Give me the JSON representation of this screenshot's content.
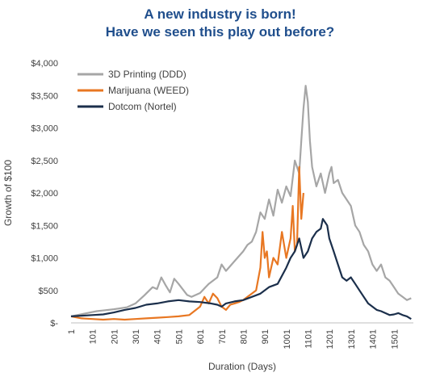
{
  "chart_data": {
    "type": "line",
    "title": "A new industry is born!",
    "subtitle": "Have we seen this play out before?",
    "xlabel": "Duration (Days)",
    "ylabel": "Growth of $100",
    "xlim": [
      1,
      1590
    ],
    "ylim": [
      0,
      4000
    ],
    "x_ticks": [
      "1",
      "101",
      "201",
      "301",
      "401",
      "501",
      "601",
      "701",
      "801",
      "901",
      "1001",
      "1101",
      "1201",
      "1301",
      "1401",
      "1501"
    ],
    "y_ticks": [
      "$-",
      "$500",
      "$1,000",
      "$1,500",
      "$2,000",
      "$2,500",
      "$3,000",
      "$3,500",
      "$4,000"
    ],
    "grid": false,
    "legend_position": "top-left",
    "series": [
      {
        "name": "3D Printing (DDD)",
        "color": "#a6a6a6",
        "x": [
          1,
          60,
          120,
          200,
          260,
          300,
          340,
          380,
          400,
          420,
          440,
          460,
          480,
          500,
          540,
          560,
          600,
          640,
          680,
          700,
          720,
          760,
          800,
          820,
          840,
          860,
          880,
          900,
          920,
          940,
          960,
          980,
          1000,
          1020,
          1040,
          1060,
          1070,
          1080,
          1090,
          1100,
          1110,
          1120,
          1140,
          1160,
          1180,
          1200,
          1210,
          1220,
          1240,
          1260,
          1280,
          1300,
          1320,
          1340,
          1360,
          1380,
          1400,
          1420,
          1440,
          1460,
          1480,
          1500,
          1520,
          1540,
          1560,
          1580
        ],
        "y": [
          100,
          140,
          180,
          210,
          240,
          300,
          420,
          550,
          520,
          700,
          580,
          470,
          680,
          600,
          430,
          400,
          460,
          600,
          700,
          900,
          800,
          950,
          1100,
          1200,
          1250,
          1400,
          1700,
          1600,
          1900,
          1650,
          2050,
          1850,
          2100,
          1950,
          2500,
          2300,
          2800,
          3300,
          3650,
          3400,
          2800,
          2400,
          2100,
          2300,
          2000,
          2300,
          2400,
          2150,
          2200,
          2000,
          1900,
          1800,
          1500,
          1400,
          1200,
          1100,
          900,
          800,
          900,
          700,
          650,
          550,
          450,
          400,
          350,
          380
        ]
      },
      {
        "name": "Marijuana (WEED)",
        "color": "#e87722",
        "x": [
          1,
          50,
          100,
          150,
          200,
          250,
          300,
          350,
          400,
          450,
          500,
          550,
          600,
          620,
          640,
          660,
          680,
          700,
          720,
          740,
          760,
          780,
          800,
          820,
          840,
          860,
          880,
          890,
          900,
          910,
          920,
          940,
          960,
          980,
          1000,
          1020,
          1030,
          1040,
          1050,
          1060,
          1070,
          1080
        ],
        "y": [
          100,
          70,
          60,
          50,
          60,
          50,
          60,
          70,
          80,
          90,
          100,
          120,
          250,
          400,
          300,
          450,
          380,
          250,
          200,
          280,
          300,
          320,
          350,
          400,
          450,
          500,
          850,
          1400,
          1000,
          1100,
          700,
          1000,
          900,
          1400,
          1000,
          1300,
          1800,
          1100,
          1200,
          2400,
          1600,
          2000
        ]
      },
      {
        "name": "Dotcom (Nortel)",
        "color": "#1b2f4b",
        "x": [
          1,
          50,
          100,
          150,
          200,
          250,
          300,
          350,
          400,
          450,
          500,
          550,
          600,
          650,
          680,
          700,
          720,
          760,
          800,
          840,
          880,
          920,
          960,
          1000,
          1020,
          1040,
          1060,
          1080,
          1100,
          1120,
          1140,
          1160,
          1170,
          1180,
          1190,
          1200,
          1220,
          1240,
          1260,
          1280,
          1300,
          1320,
          1340,
          1360,
          1380,
          1400,
          1420,
          1440,
          1460,
          1480,
          1500,
          1520,
          1540,
          1560,
          1580
        ],
        "y": [
          100,
          110,
          120,
          130,
          160,
          200,
          230,
          280,
          300,
          330,
          350,
          330,
          320,
          300,
          280,
          250,
          300,
          330,
          350,
          400,
          450,
          550,
          600,
          850,
          1000,
          1100,
          1300,
          1000,
          1100,
          1300,
          1400,
          1450,
          1600,
          1550,
          1500,
          1300,
          1100,
          900,
          700,
          650,
          700,
          600,
          500,
          400,
          300,
          250,
          200,
          180,
          150,
          120,
          130,
          150,
          120,
          100,
          60
        ]
      }
    ]
  }
}
